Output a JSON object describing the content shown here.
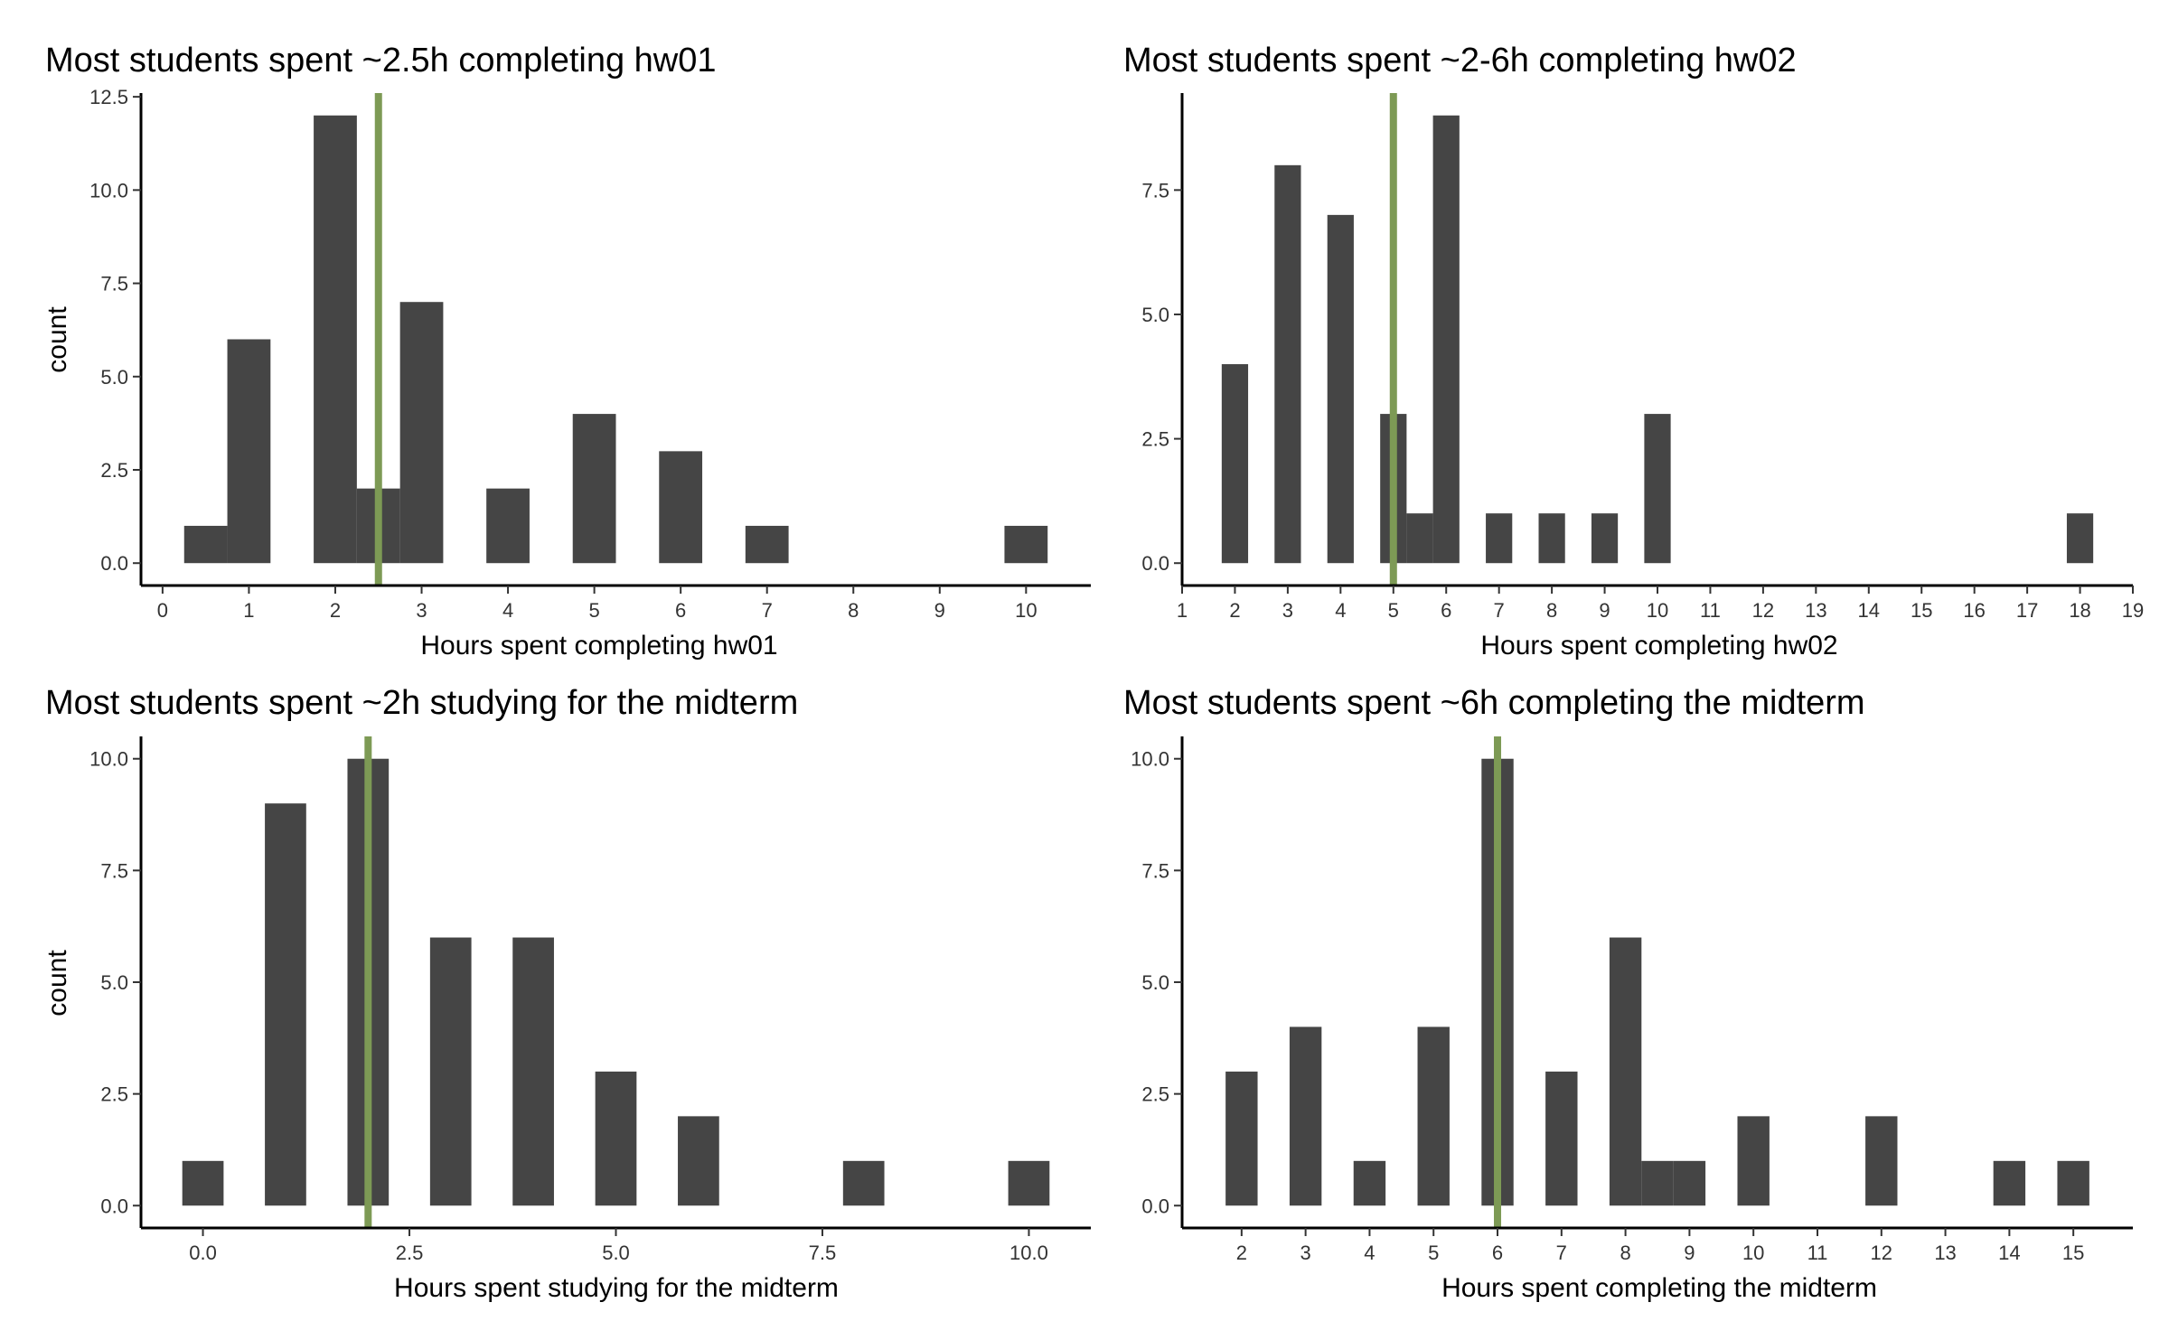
{
  "chart_data": [
    {
      "type": "bar",
      "title": "Most students spent ~2.5h completing hw01",
      "xlabel": "Hours spent completing hw01",
      "ylabel": "count",
      "xlim": [
        -0.25,
        10.75
      ],
      "ylim": [
        -0.6,
        12.6
      ],
      "xticks": [
        0,
        1,
        2,
        3,
        4,
        5,
        6,
        7,
        8,
        9,
        10
      ],
      "xtick_labels": [
        "0",
        "1",
        "2",
        "3",
        "4",
        "5",
        "6",
        "7",
        "8",
        "9",
        "10"
      ],
      "yticks": [
        0,
        2.5,
        5,
        7.5,
        10,
        12.5
      ],
      "ytick_labels": [
        "0.0",
        "2.5",
        "5.0",
        "7.5",
        "10.0",
        "12.5"
      ],
      "bin_width": 0.5,
      "bins": [
        {
          "x": 0.5,
          "count": 1
        },
        {
          "x": 1.0,
          "count": 6
        },
        {
          "x": 2.0,
          "count": 12
        },
        {
          "x": 2.5,
          "count": 2
        },
        {
          "x": 3.0,
          "count": 7
        },
        {
          "x": 4.0,
          "count": 2
        },
        {
          "x": 5.0,
          "count": 4
        },
        {
          "x": 6.0,
          "count": 3
        },
        {
          "x": 7.0,
          "count": 1
        },
        {
          "x": 10.0,
          "count": 1
        }
      ],
      "reference_line": 2.5,
      "grid": false
    },
    {
      "type": "bar",
      "title": "Most students spent ~2-6h completing hw02",
      "xlabel": "Hours spent completing hw02",
      "ylabel": "",
      "xlim": [
        1,
        19
      ],
      "ylim": [
        -0.45,
        9.45
      ],
      "xticks": [
        1,
        2,
        3,
        4,
        5,
        6,
        7,
        8,
        9,
        10,
        11,
        12,
        13,
        14,
        15,
        16,
        17,
        18,
        19
      ],
      "xtick_labels": [
        "1",
        "2",
        "3",
        "4",
        "5",
        "6",
        "7",
        "8",
        "9",
        "10",
        "11",
        "12",
        "13",
        "14",
        "15",
        "16",
        "17",
        "18",
        "19"
      ],
      "yticks": [
        0,
        2.5,
        5,
        7.5
      ],
      "ytick_labels": [
        "0.0",
        "2.5",
        "5.0",
        "7.5"
      ],
      "bin_width": 0.5,
      "bins": [
        {
          "x": 2.0,
          "count": 4
        },
        {
          "x": 3.0,
          "count": 8
        },
        {
          "x": 4.0,
          "count": 7
        },
        {
          "x": 5.0,
          "count": 3
        },
        {
          "x": 5.5,
          "count": 1
        },
        {
          "x": 6.0,
          "count": 9
        },
        {
          "x": 7.0,
          "count": 1
        },
        {
          "x": 8.0,
          "count": 1
        },
        {
          "x": 9.0,
          "count": 1
        },
        {
          "x": 10.0,
          "count": 3
        },
        {
          "x": 18.0,
          "count": 1
        }
      ],
      "reference_line": 5,
      "grid": false
    },
    {
      "type": "bar",
      "title": "Most students spent  ~2h studying for the midterm",
      "xlabel": "Hours spent studying for the midterm",
      "ylabel": "count",
      "xlim": [
        -0.75,
        10.75
      ],
      "ylim": [
        -0.5,
        10.5
      ],
      "xticks": [
        0,
        2.5,
        5,
        7.5,
        10
      ],
      "xtick_labels": [
        "0.0",
        "2.5",
        "5.0",
        "7.5",
        "10.0"
      ],
      "yticks": [
        0,
        2.5,
        5,
        7.5,
        10
      ],
      "ytick_labels": [
        "0.0",
        "2.5",
        "5.0",
        "7.5",
        "10.0"
      ],
      "bin_width": 0.5,
      "bins": [
        {
          "x": 0.0,
          "count": 1
        },
        {
          "x": 1.0,
          "count": 9
        },
        {
          "x": 2.0,
          "count": 10
        },
        {
          "x": 3.0,
          "count": 6
        },
        {
          "x": 4.0,
          "count": 6
        },
        {
          "x": 5.0,
          "count": 3
        },
        {
          "x": 6.0,
          "count": 2
        },
        {
          "x": 8.0,
          "count": 1
        },
        {
          "x": 10.0,
          "count": 1
        }
      ],
      "reference_line": 2,
      "grid": false
    },
    {
      "type": "bar",
      "title": "Most students spent  ~6h completing the midterm",
      "xlabel": "Hours spent completing the midterm",
      "ylabel": "",
      "xlim": [
        1.07,
        15.93
      ],
      "ylim": [
        -0.5,
        10.5
      ],
      "xticks": [
        2,
        3,
        4,
        5,
        6,
        7,
        8,
        9,
        10,
        11,
        12,
        13,
        14,
        15
      ],
      "xtick_labels": [
        "2",
        "3",
        "4",
        "5",
        "6",
        "7",
        "8",
        "9",
        "10",
        "11",
        "12",
        "13",
        "14",
        "15"
      ],
      "yticks": [
        0,
        2.5,
        5,
        7.5,
        10
      ],
      "ytick_labels": [
        "0.0",
        "2.5",
        "5.0",
        "7.5",
        "10.0"
      ],
      "bin_width": 0.5,
      "bins": [
        {
          "x": 2.0,
          "count": 3
        },
        {
          "x": 3.0,
          "count": 4
        },
        {
          "x": 4.0,
          "count": 1
        },
        {
          "x": 5.0,
          "count": 4
        },
        {
          "x": 6.0,
          "count": 10
        },
        {
          "x": 7.0,
          "count": 3
        },
        {
          "x": 8.0,
          "count": 6
        },
        {
          "x": 8.5,
          "count": 1
        },
        {
          "x": 9.0,
          "count": 1
        },
        {
          "x": 10.0,
          "count": 2
        },
        {
          "x": 12.0,
          "count": 2
        },
        {
          "x": 14.0,
          "count": 1
        },
        {
          "x": 15.0,
          "count": 1
        }
      ],
      "reference_line": 6,
      "grid": false
    }
  ],
  "colors": {
    "bar_fill": "#454545",
    "reference_line": "#7d9a55",
    "axis": "#000000",
    "tick_text": "#333333",
    "background": "#ffffff"
  }
}
